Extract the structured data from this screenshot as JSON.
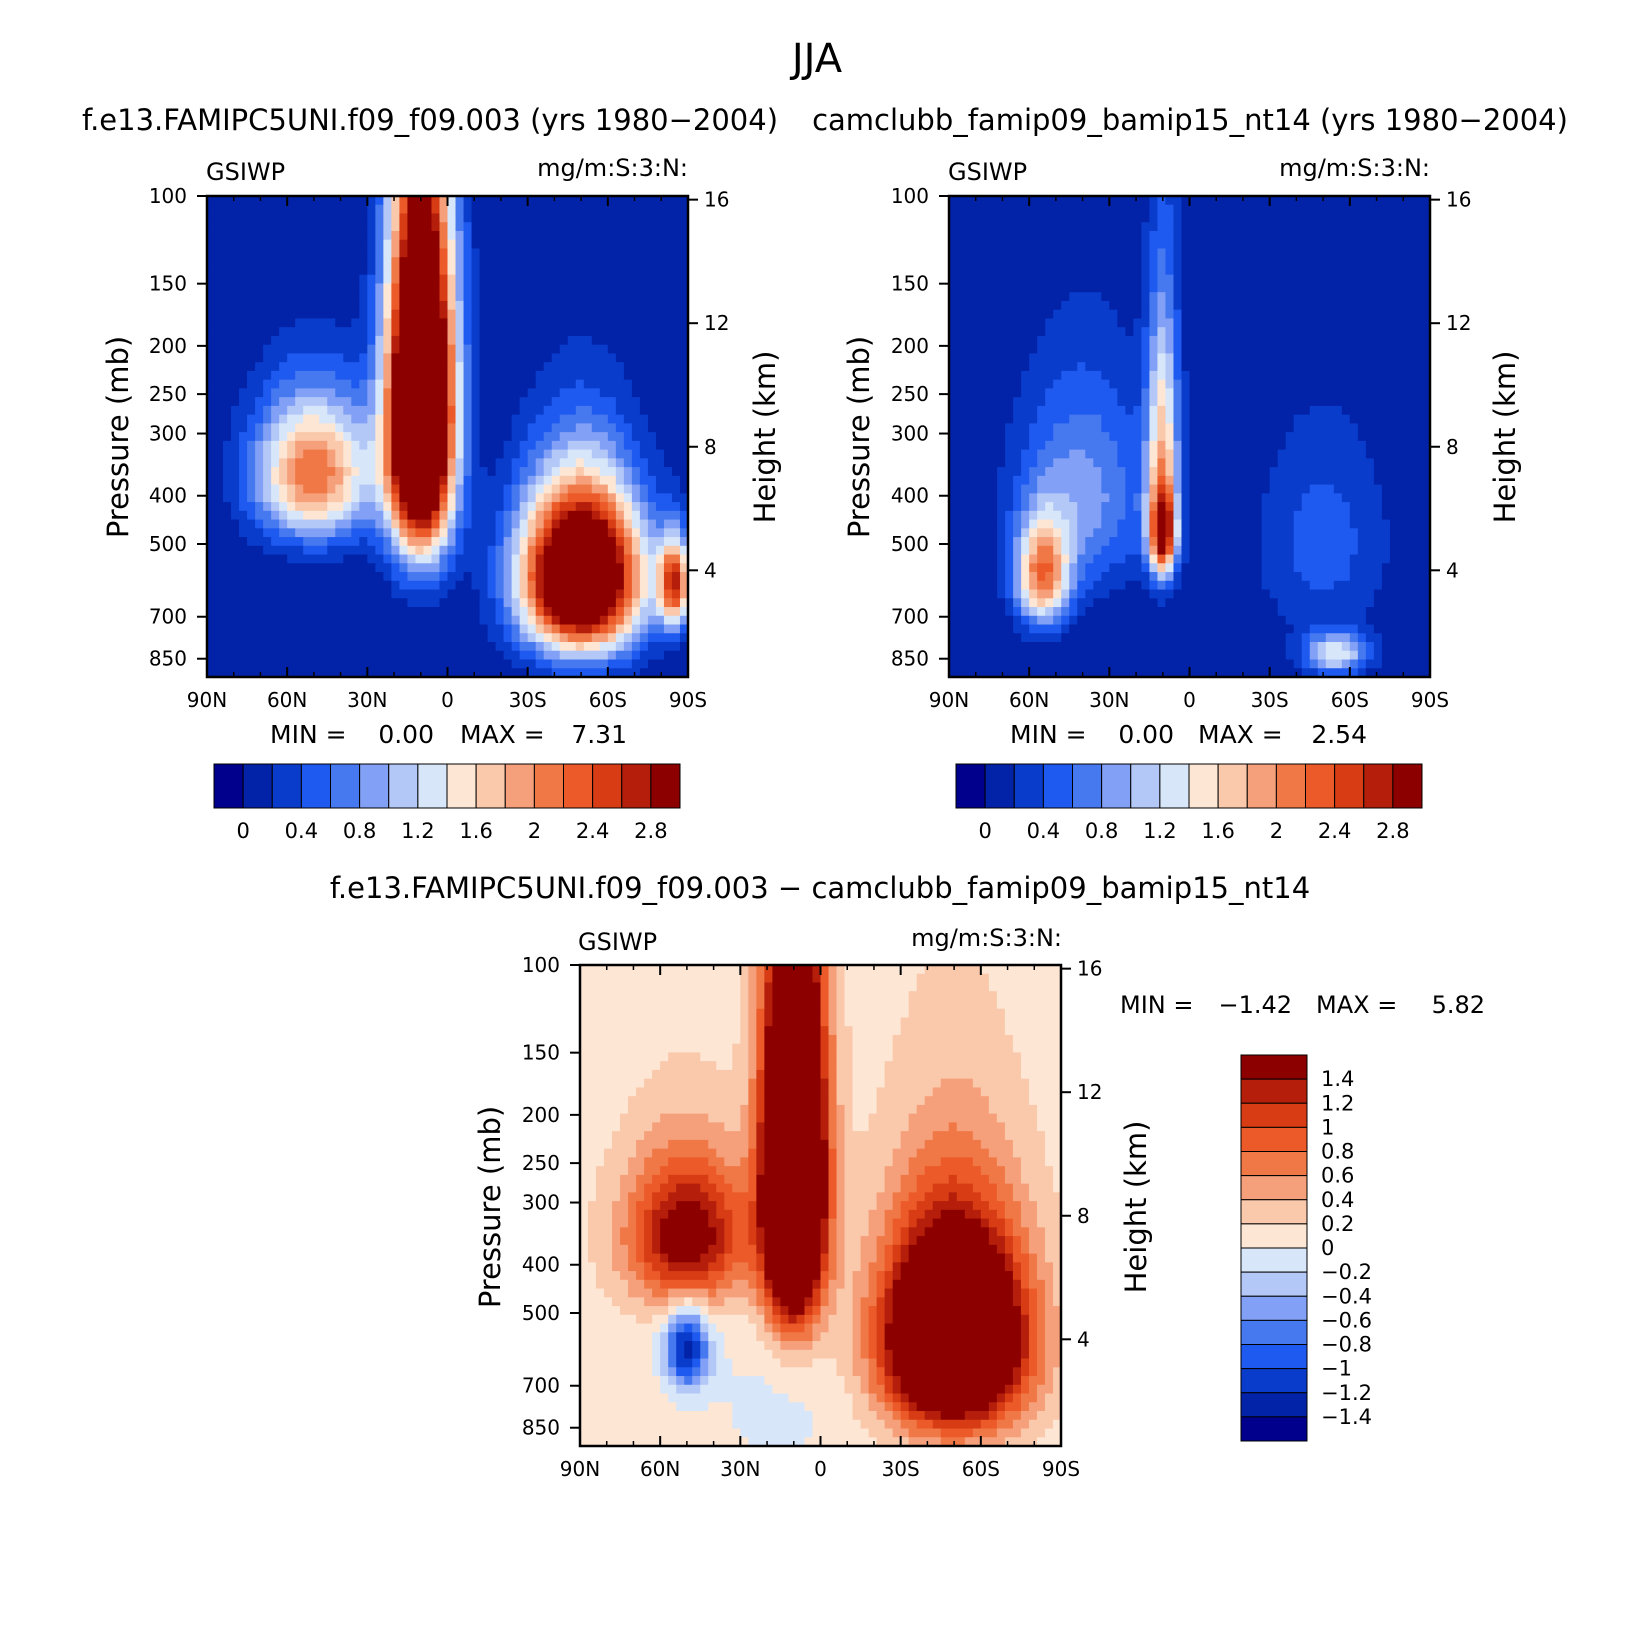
{
  "figure": {
    "title": "JJA",
    "colors": {
      "cold": [
        "#00008c",
        "#0222a8",
        "#0a3ccc",
        "#1e5af0",
        "#4678f0",
        "#82a0f5",
        "#b4c8f8",
        "#d8e6fa"
      ],
      "warm": [
        "#fde6d4",
        "#fac8aa",
        "#f5a07a",
        "#f07846",
        "#eb5a28",
        "#d73c14",
        "#b41e0a",
        "#8c0000"
      ],
      "background": "#ffffff",
      "ink": "#000000"
    }
  },
  "chart_data": [
    {
      "id": "panel_a",
      "type": "heatmap",
      "title": "f.e13.FAMIPC5UNI.f09_f09.003 (yrs 1980−2004)",
      "left_label": "GSIWP",
      "right_label": "mg/m:S:3:N:",
      "ylabel": "Pressure (mb)",
      "y2label": "Height (km)",
      "xticks": [
        "90N",
        "60N",
        "30N",
        "0",
        "30S",
        "60S",
        "90S"
      ],
      "yticks": [
        "100",
        "150",
        "200",
        "250",
        "300",
        "400",
        "500",
        "700",
        "850"
      ],
      "y2ticks": [
        "16",
        "12",
        "8",
        "4"
      ],
      "xlim": [
        90,
        -90
      ],
      "ylim_mb": [
        100,
        925
      ],
      "stats": {
        "min_label": "MIN =",
        "min": "0.00",
        "max_label": "MAX =",
        "max": "7.31"
      },
      "colorbar": {
        "orientation": "horizontal",
        "levels": [
          0,
          0.2,
          0.4,
          0.6,
          0.8,
          1,
          1.2,
          1.4,
          1.6,
          1.8,
          2,
          2.2,
          2.4,
          2.6,
          2.8
        ],
        "labels": [
          "0",
          "0.4",
          "0.8",
          "1.2",
          "1.6",
          "2",
          "2.4",
          "2.8"
        ]
      },
      "features": [
        {
          "lat": 10,
          "p": 270,
          "value": 5.5,
          "lat_width": 12,
          "p_width": 220
        },
        {
          "lat": 50,
          "p": 360,
          "value": 2.2,
          "lat_width": 22,
          "p_width": 120
        },
        {
          "lat": -50,
          "p": 580,
          "value": 4.5,
          "lat_width": 22,
          "p_width": 220
        },
        {
          "lat": -85,
          "p": 600,
          "value": 2.4,
          "lat_width": 6,
          "p_width": 120
        }
      ]
    },
    {
      "id": "panel_b",
      "type": "heatmap",
      "title": "camclubb_famip09_bamip15_nt14 (yrs 1980−2004)",
      "left_label": "GSIWP",
      "right_label": "mg/m:S:3:N:",
      "ylabel": "Pressure (mb)",
      "y2label": "Height (km)",
      "xticks": [
        "90N",
        "60N",
        "30N",
        "0",
        "30S",
        "60S",
        "90S"
      ],
      "yticks": [
        "100",
        "150",
        "200",
        "250",
        "300",
        "400",
        "500",
        "700",
        "850"
      ],
      "y2ticks": [
        "16",
        "12",
        "8",
        "4"
      ],
      "xlim": [
        90,
        -90
      ],
      "ylim_mb": [
        100,
        925
      ],
      "stats": {
        "min_label": "MIN =",
        "min": "0.00",
        "max_label": "MAX =",
        "max": "2.54"
      },
      "colorbar": {
        "orientation": "horizontal",
        "levels": [
          0,
          0.2,
          0.4,
          0.6,
          0.8,
          1,
          1.2,
          1.4,
          1.6,
          1.8,
          2,
          2.2,
          2.4,
          2.6,
          2.8
        ],
        "labels": [
          "0",
          "0.4",
          "0.8",
          "1.2",
          "1.6",
          "2",
          "2.4",
          "2.8"
        ]
      },
      "features": [
        {
          "lat": 10,
          "p": 480,
          "value": 2.3,
          "lat_width": 5,
          "p_width": 90
        },
        {
          "lat": 10,
          "p": 330,
          "value": 1.6,
          "lat_width": 6,
          "p_width": 200
        },
        {
          "lat": 55,
          "p": 580,
          "value": 2.0,
          "lat_width": 10,
          "p_width": 140
        },
        {
          "lat": 40,
          "p": 400,
          "value": 0.9,
          "lat_width": 25,
          "p_width": 200
        },
        {
          "lat": -55,
          "p": 830,
          "value": 1.3,
          "lat_width": 12,
          "p_width": 80
        },
        {
          "lat": -50,
          "p": 500,
          "value": 0.5,
          "lat_width": 25,
          "p_width": 250
        }
      ]
    },
    {
      "id": "panel_diff",
      "type": "heatmap",
      "title": "f.e13.FAMIPC5UNI.f09_f09.003 − camclubb_famip09_bamip15_nt14",
      "left_label": "GSIWP",
      "right_label": "mg/m:S:3:N:",
      "ylabel": "Pressure (mb)",
      "y2label": "Height (km)",
      "xticks": [
        "90N",
        "60N",
        "30N",
        "0",
        "30S",
        "60S",
        "90S"
      ],
      "yticks": [
        "100",
        "150",
        "200",
        "250",
        "300",
        "400",
        "500",
        "700",
        "850"
      ],
      "y2ticks": [
        "16",
        "12",
        "8",
        "4"
      ],
      "xlim": [
        90,
        -90
      ],
      "ylim_mb": [
        100,
        925
      ],
      "stats": {
        "min_label": "MIN =",
        "min": "−1.42",
        "max_label": "MAX =",
        "max": "5.82"
      },
      "colorbar": {
        "orientation": "vertical",
        "levels": [
          1.4,
          1.2,
          1,
          0.8,
          0.6,
          0.4,
          0.2,
          0,
          -0.2,
          -0.4,
          -0.6,
          -0.8,
          -1,
          -1.2,
          -1.4
        ],
        "labels": [
          "1.4",
          "1.2",
          "1",
          "0.8",
          "0.6",
          "0.4",
          "0.2",
          "0",
          "−0.2",
          "−0.4",
          "−0.6",
          "−0.8",
          "−1",
          "−1.2",
          "−1.4"
        ]
      },
      "features": [
        {
          "lat": 10,
          "p": 270,
          "value": 4.0,
          "lat_width": 11,
          "p_width": 220
        },
        {
          "lat": 50,
          "p": 350,
          "value": 1.6,
          "lat_width": 22,
          "p_width": 120
        },
        {
          "lat": -50,
          "p": 560,
          "value": 3.5,
          "lat_width": 25,
          "p_width": 250
        },
        {
          "lat": 50,
          "p": 590,
          "value": -1.4,
          "lat_width": 8,
          "p_width": 110
        },
        {
          "lat": 15,
          "p": 750,
          "value": -0.15,
          "lat_width": 30,
          "p_width": 300
        }
      ]
    }
  ]
}
